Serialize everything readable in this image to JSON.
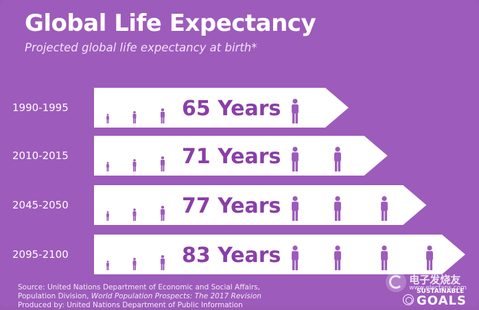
{
  "header": {
    "title": "Global Life Expectancy",
    "subtitle": "Projected global life expectancy at birth*"
  },
  "chart_data": {
    "type": "bar",
    "orientation": "horizontal",
    "title": "Global Life Expectancy",
    "subtitle": "Projected global life expectancy at birth*",
    "categories": [
      "1990-1995",
      "2010-2015",
      "2045-2050",
      "2095-2100"
    ],
    "values": [
      65,
      71,
      77,
      83
    ],
    "value_labels": [
      "65 Years",
      "71 Years",
      "77 Years",
      "83 Years"
    ],
    "people_icons": [
      4,
      5,
      6,
      7
    ],
    "unit": "Years",
    "grid": false,
    "legend": "none",
    "colors": {
      "bar": "#ffffff",
      "text": "#8a3fa7",
      "background": "#9d5bbb",
      "icon": "#9d5bbb"
    }
  },
  "footer": {
    "source_prefix": "Source: United Nations Department of Economic and Social Affairs,",
    "source_line2": "Population Division,",
    "source_publication": "World Population Prospects: The 2017 Revision",
    "source_line3": "Produced by: United Nations Department of Public Information",
    "goals_top": "SUSTAINABLE",
    "goals_bottom": "GOALS"
  },
  "watermark": {
    "chinese": "电子发烧友",
    "latin": "www.elecfans.com"
  }
}
